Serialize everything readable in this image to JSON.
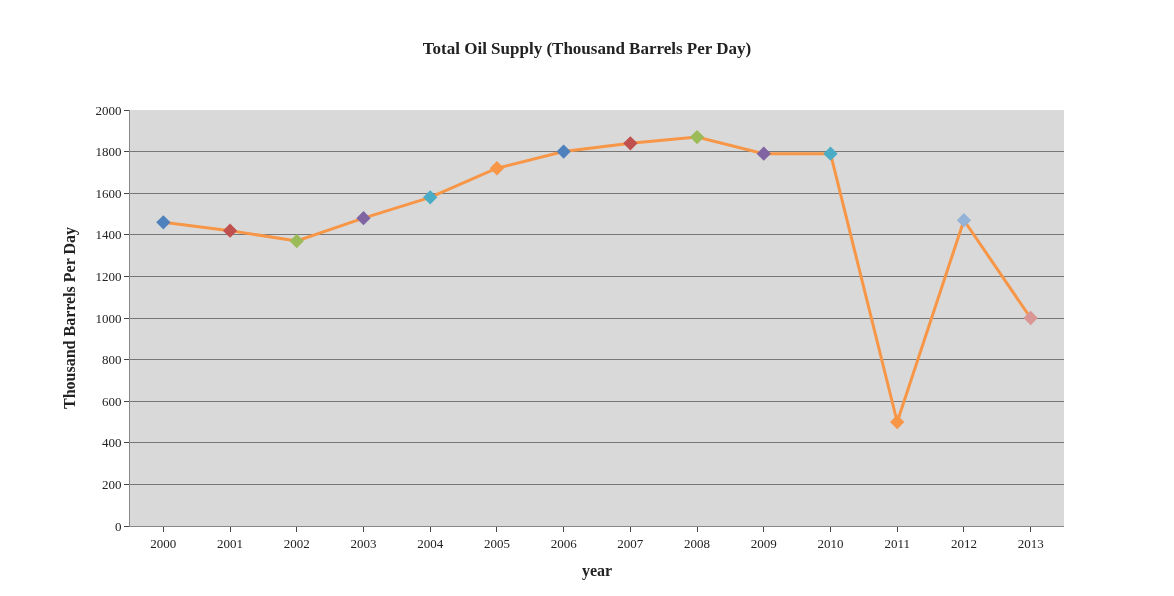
{
  "chart_data": {
    "type": "line",
    "title": "Total Oil Supply (Thousand Barrels Per Day)",
    "xlabel": "year",
    "ylabel": "Thousand Barrels Per Day",
    "categories": [
      "2000",
      "2001",
      "2002",
      "2003",
      "2004",
      "2005",
      "2006",
      "2007",
      "2008",
      "2009",
      "2010",
      "2011",
      "2012",
      "2013"
    ],
    "series": [
      {
        "values": [
          1460,
          1420,
          1370,
          1480,
          1580,
          1720,
          1800,
          1840,
          1870,
          1790,
          1790,
          500,
          1470,
          1000
        ],
        "color": "#f79646",
        "colors": [
          "#4f81bd",
          "#c0504d",
          "#9bbb59",
          "#8064a2",
          "#4bacc6",
          "#f79646",
          "#4f81bd",
          "#c0504d",
          "#9bbb59",
          "#8064a2",
          "#4bacc6",
          "#f79646",
          "#95b3d7",
          "#d99694"
        ]
      }
    ],
    "ylim": [
      0,
      2000
    ],
    "yticks": [
      0,
      200,
      400,
      600,
      800,
      1000,
      1200,
      1400,
      1600,
      1800,
      2000
    ],
    "grid": "y",
    "marker": "diamond",
    "line_style": "solid"
  }
}
